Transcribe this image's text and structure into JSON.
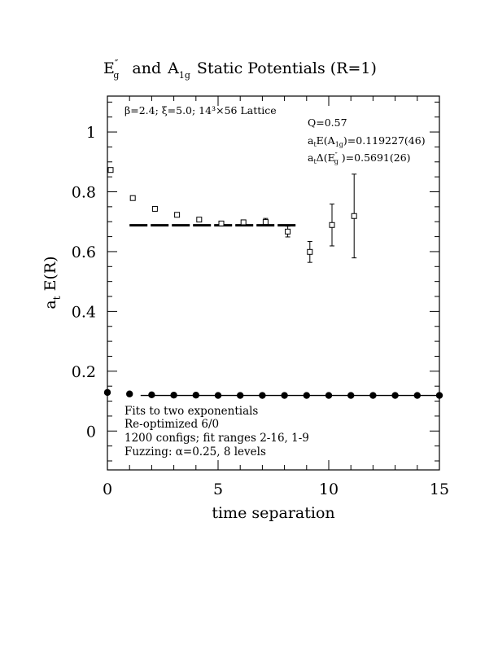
{
  "chart_data": {
    "type": "scatter",
    "title": "E″g  and A1g Static Potentials (R=1)",
    "title_parts": {
      "e_main": "E",
      "e_prime": "″",
      "e_sub": "g",
      "and": "and",
      "a_main": "A",
      "a_sub": "1g",
      "rest": "Static Potentials (R=1)"
    },
    "xlabel": "time separation",
    "ylabel": {
      "main_a": "a",
      "sub_t": "t",
      "rest": "E(R)"
    },
    "xlim": [
      0,
      15
    ],
    "ylim": [
      -0.13,
      1.12
    ],
    "x_ticks": [
      0,
      5,
      10,
      15
    ],
    "x_tick_labels": [
      "0",
      "5",
      "10",
      "15"
    ],
    "y_ticks": [
      0,
      0.2,
      0.4,
      0.6,
      0.8,
      1
    ],
    "y_tick_labels": [
      "0",
      "0.2",
      "0.4",
      "0.6",
      "0.8",
      "1"
    ],
    "grid": false,
    "lattice_note": "β=2.4; ξ=5.0; 14³×56 Lattice",
    "fit_results": {
      "q": "Q=0.57",
      "a1g": {
        "pre": "a",
        "pre_sub": "t",
        "mid": "E(A",
        "mid_sub": "1g",
        "post": ")=0.119227(46)"
      },
      "eg": {
        "pre": "a",
        "pre_sub": "t",
        "mid": "Δ(E",
        "mid_sup": "″",
        "mid_sub": "g",
        "post": " )=0.5691(26)"
      }
    },
    "notes": [
      "Fits to two exponentials",
      "Re-optimized 6/0",
      "1200 configs; fit ranges 2-16, 1-9",
      "Fuzzing: α=0.25, 8 levels"
    ],
    "series": [
      {
        "marker": "open-square",
        "points": [
          {
            "x": 0,
            "y": 0.873,
            "err": 0.006
          },
          {
            "x": 1,
            "y": 0.779,
            "err": 0.005
          },
          {
            "x": 2,
            "y": 0.743,
            "err": 0.005
          },
          {
            "x": 3,
            "y": 0.723,
            "err": 0.005
          },
          {
            "x": 4,
            "y": 0.707,
            "err": 0.006
          },
          {
            "x": 5,
            "y": 0.694,
            "err": 0.006
          },
          {
            "x": 6,
            "y": 0.698,
            "err": 0.008
          },
          {
            "x": 7,
            "y": 0.699,
            "err": 0.012
          },
          {
            "x": 8,
            "y": 0.667,
            "err": 0.018
          },
          {
            "x": 9,
            "y": 0.599,
            "err": 0.035
          },
          {
            "x": 10,
            "y": 0.689,
            "err": 0.07
          },
          {
            "x": 11,
            "y": 0.719,
            "err": 0.14
          }
        ]
      },
      {
        "marker": "filled-circle",
        "points": [
          {
            "x": 0,
            "y": 0.129
          },
          {
            "x": 1,
            "y": 0.124
          },
          {
            "x": 2,
            "y": 0.121
          },
          {
            "x": 3,
            "y": 0.12
          },
          {
            "x": 4,
            "y": 0.12
          },
          {
            "x": 5,
            "y": 0.119
          },
          {
            "x": 6,
            "y": 0.119
          },
          {
            "x": 7,
            "y": 0.119
          },
          {
            "x": 8,
            "y": 0.119
          },
          {
            "x": 9,
            "y": 0.119
          },
          {
            "x": 10,
            "y": 0.119
          },
          {
            "x": 11,
            "y": 0.119
          },
          {
            "x": 12,
            "y": 0.119
          },
          {
            "x": 13,
            "y": 0.119
          },
          {
            "x": 14,
            "y": 0.119
          },
          {
            "x": 15,
            "y": 0.119
          }
        ]
      }
    ],
    "fit_lines": [
      {
        "style": "dashed-thick",
        "x_range": [
          1,
          8.5
        ],
        "y": 0.688
      },
      {
        "style": "solid",
        "x_range": [
          1.5,
          15
        ],
        "y": 0.119
      }
    ]
  }
}
